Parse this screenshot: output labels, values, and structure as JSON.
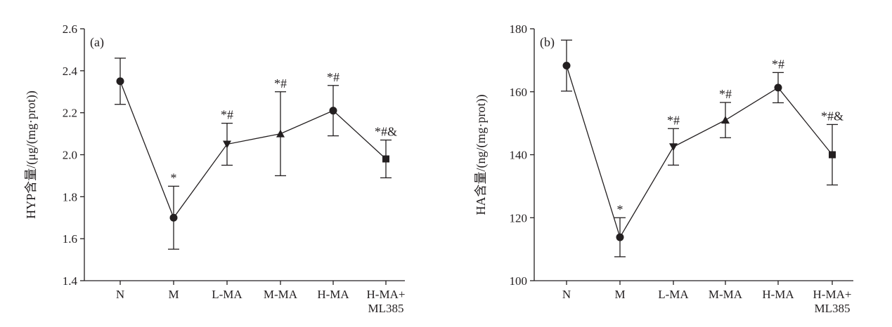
{
  "chart_data": [
    {
      "type": "line",
      "panel_label": "(a)",
      "ylabel": "HYP含量/(μg/(mg·prot))",
      "ylim": [
        1.4,
        2.6
      ],
      "yticks": [
        "1.4",
        "1.6",
        "1.8",
        "2.0",
        "2.2",
        "2.4",
        "2.6"
      ],
      "categories": [
        [
          "N"
        ],
        [
          "M"
        ],
        [
          "L-MA"
        ],
        [
          "M-MA"
        ],
        [
          "H-MA"
        ],
        [
          "H-MA+",
          "ML385"
        ]
      ],
      "markers": [
        "circle",
        "circle",
        "triangle-down",
        "triangle-up",
        "circle",
        "square"
      ],
      "values": [
        2.35,
        1.7,
        2.05,
        2.1,
        2.21,
        1.98
      ],
      "errors": [
        0.11,
        0.15,
        0.1,
        0.2,
        0.12,
        0.09
      ],
      "annotations": [
        "",
        "*",
        "*#",
        "*#",
        "*#",
        "*#&"
      ]
    },
    {
      "type": "line",
      "panel_label": "(b)",
      "ylabel": "HA含量/(ng/(mg·prot))",
      "ylim": [
        100,
        180
      ],
      "yticks": [
        "100",
        "120",
        "140",
        "160",
        "180"
      ],
      "categories": [
        [
          "N"
        ],
        [
          "M"
        ],
        [
          "L-MA"
        ],
        [
          "M-MA"
        ],
        [
          "H-MA"
        ],
        [
          "H-MA+",
          "ML385"
        ]
      ],
      "markers": [
        "circle",
        "circle",
        "triangle-down",
        "triangle-up",
        "circle",
        "square"
      ],
      "values": [
        168.3,
        113.8,
        142.5,
        151.0,
        161.3,
        140.0
      ],
      "errors": [
        8.1,
        6.2,
        5.8,
        5.6,
        4.8,
        9.6
      ],
      "annotations": [
        "",
        "*",
        "*#",
        "*#",
        "*#",
        "*#&"
      ]
    }
  ]
}
